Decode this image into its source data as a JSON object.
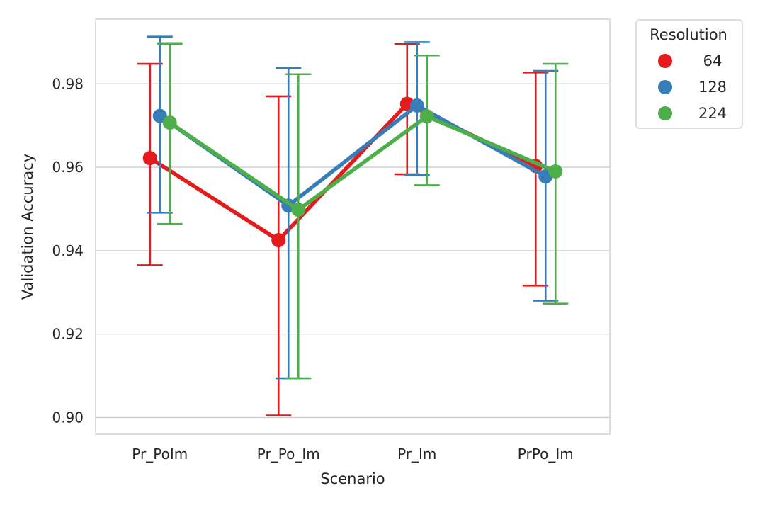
{
  "chart_data": {
    "type": "line",
    "xlabel": "Scenario",
    "ylabel": "Validation Accuracy",
    "categories": [
      "Pr_PoIm",
      "Pr_Po_Im",
      "Pr_Im",
      "PrPo_Im"
    ],
    "ylim": [
      0.896,
      0.9955
    ],
    "yticks": [
      0.9,
      0.92,
      0.94,
      0.96,
      0.98
    ],
    "ytick_labels": [
      "0.90",
      "0.92",
      "0.94",
      "0.96",
      "0.98"
    ],
    "grid": true,
    "legend": {
      "title": "Resolution",
      "placement": "outside-top-right"
    },
    "series": [
      {
        "name": "64",
        "color": "#e41a1c",
        "values": [
          0.9622,
          0.9425,
          0.9752,
          0.9603
        ],
        "ci_low": [
          0.9365,
          0.9005,
          0.9583,
          0.9316
        ],
        "ci_high": [
          0.9848,
          0.977,
          0.9895,
          0.9827
        ]
      },
      {
        "name": "128",
        "color": "#377eb8",
        "values": [
          0.9723,
          0.9508,
          0.9748,
          0.9578
        ],
        "ci_low": [
          0.9491,
          0.9094,
          0.9581,
          0.928
        ],
        "ci_high": [
          0.9913,
          0.9838,
          0.99,
          0.9831
        ]
      },
      {
        "name": "224",
        "color": "#4daf4a",
        "values": [
          0.9707,
          0.9498,
          0.9722,
          0.959
        ],
        "ci_low": [
          0.9464,
          0.9094,
          0.9557,
          0.9273
        ],
        "ci_high": [
          0.9896,
          0.9823,
          0.9868,
          0.9848
        ]
      }
    ]
  }
}
